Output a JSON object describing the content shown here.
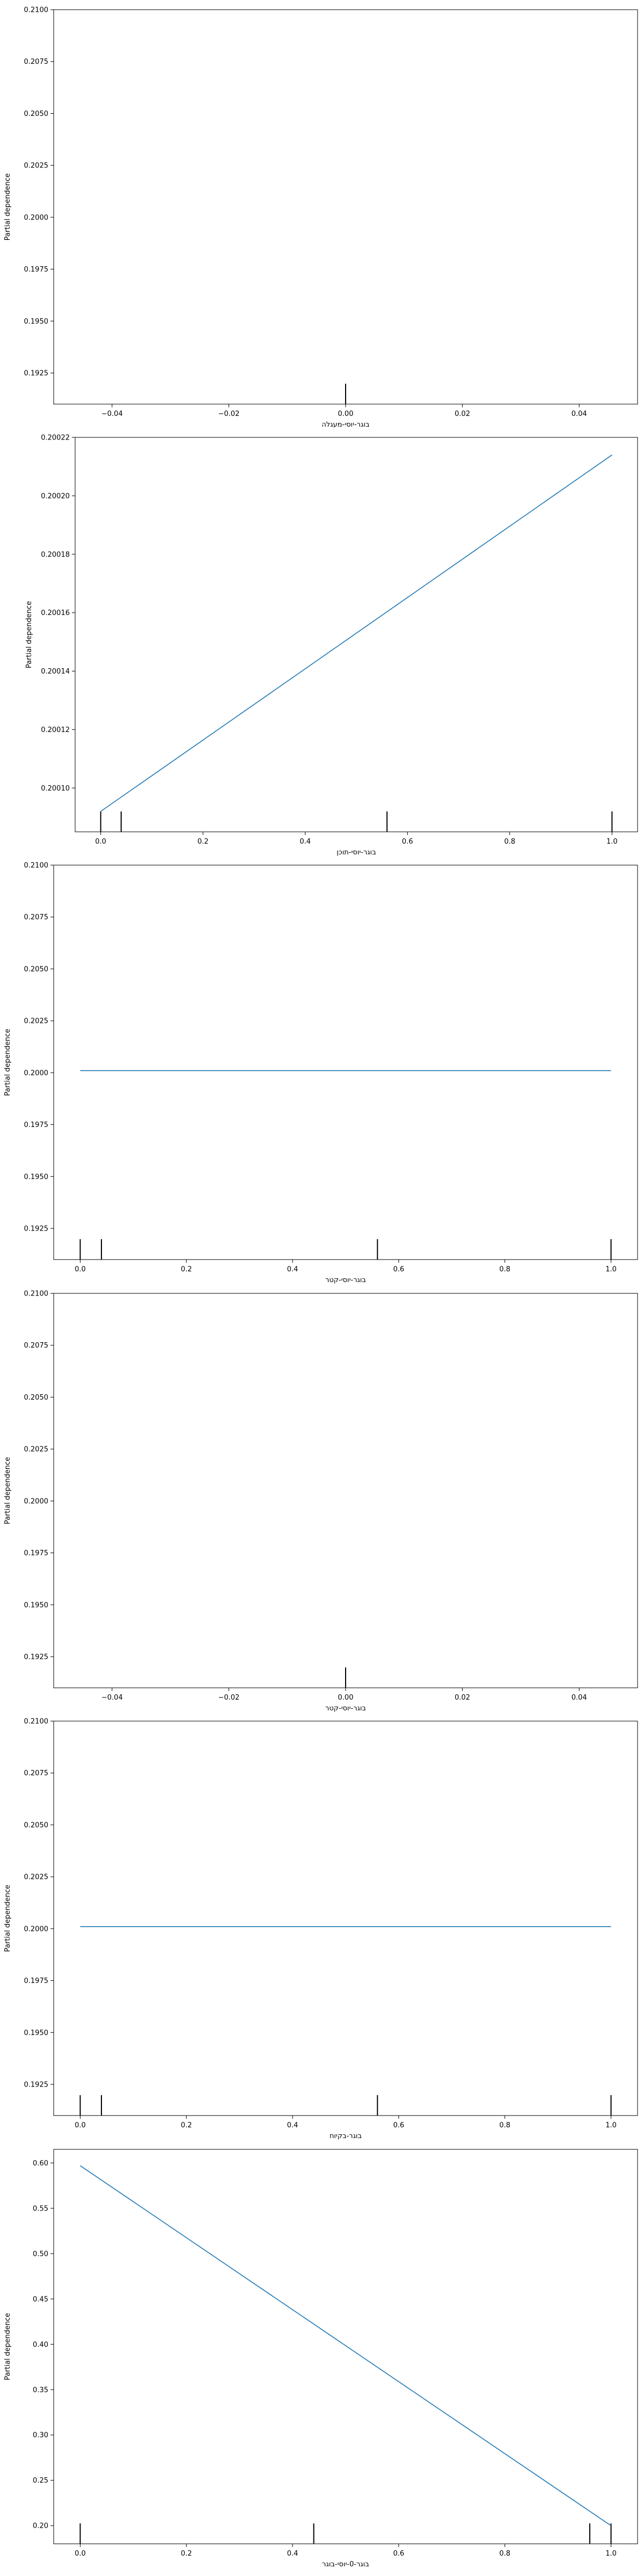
{
  "chart_data": [
    {
      "type": "line",
      "ylabel": "Partial dependence",
      "xlabel": "בוגר-יוסי-מעגלה",
      "xlim": [
        -0.05,
        0.05
      ],
      "ylim": [
        0.191,
        0.21
      ],
      "xticks": [
        -0.04,
        -0.02,
        0.0,
        0.02,
        0.04
      ],
      "xtick_labels": [
        "−0.04",
        "−0.02",
        "0.00",
        "0.02",
        "0.04"
      ],
      "yticks": [
        0.1925,
        0.195,
        0.1975,
        0.2,
        0.2025,
        0.205,
        0.2075,
        0.21
      ],
      "ytick_labels": [
        "0.1925",
        "0.1950",
        "0.1975",
        "0.2000",
        "0.2025",
        "0.2050",
        "0.2075",
        "0.2100"
      ],
      "x": [],
      "y": [],
      "rug": [
        0.0
      ],
      "line_color": "#1f77b4"
    },
    {
      "type": "line",
      "ylabel": "Partial dependence",
      "xlabel": "בוגר-יוסי-תוכן",
      "xlim": [
        -0.05,
        1.05
      ],
      "ylim": [
        0.200085,
        0.20022
      ],
      "xticks": [
        0.0,
        0.2,
        0.4,
        0.6,
        0.8,
        1.0
      ],
      "xtick_labels": [
        "0.0",
        "0.2",
        "0.4",
        "0.6",
        "0.8",
        "1.0"
      ],
      "yticks": [
        0.2001,
        0.20012,
        0.20014,
        0.20016,
        0.20018,
        0.2002,
        0.20022
      ],
      "ytick_labels": [
        "0.20010",
        "0.20012",
        "0.20014",
        "0.20016",
        "0.20018",
        "0.20020",
        "0.20022"
      ],
      "x": [
        0.0,
        1.0
      ],
      "y": [
        0.200092,
        0.200214
      ],
      "rug": [
        0.0,
        0.04,
        0.56,
        1.0
      ],
      "line_color": "#1f77b4"
    },
    {
      "type": "line",
      "ylabel": "Partial dependence",
      "xlabel": "בוגר-יוסי-קטר",
      "xlim": [
        -0.05,
        1.05
      ],
      "ylim": [
        0.191,
        0.21
      ],
      "xticks": [
        0.0,
        0.2,
        0.4,
        0.6,
        0.8,
        1.0
      ],
      "xtick_labels": [
        "0.0",
        "0.2",
        "0.4",
        "0.6",
        "0.8",
        "1.0"
      ],
      "yticks": [
        0.1925,
        0.195,
        0.1975,
        0.2,
        0.2025,
        0.205,
        0.2075,
        0.21
      ],
      "ytick_labels": [
        "0.1925",
        "0.1950",
        "0.1975",
        "0.2000",
        "0.2025",
        "0.2050",
        "0.2075",
        "0.2100"
      ],
      "x": [
        0.0,
        1.0
      ],
      "y": [
        0.2001,
        0.2001
      ],
      "rug": [
        0.0,
        0.04,
        0.56,
        1.0
      ],
      "line_color": "#1f77b4"
    },
    {
      "type": "line",
      "ylabel": "Partial dependence",
      "xlabel": "בוגר-יוסי-קטר",
      "xlim": [
        -0.05,
        0.05
      ],
      "ylim": [
        0.191,
        0.21
      ],
      "xticks": [
        -0.04,
        -0.02,
        0.0,
        0.02,
        0.04
      ],
      "xtick_labels": [
        "−0.04",
        "−0.02",
        "0.00",
        "0.02",
        "0.04"
      ],
      "yticks": [
        0.1925,
        0.195,
        0.1975,
        0.2,
        0.2025,
        0.205,
        0.2075,
        0.21
      ],
      "ytick_labels": [
        "0.1925",
        "0.1950",
        "0.1975",
        "0.2000",
        "0.2025",
        "0.2050",
        "0.2075",
        "0.2100"
      ],
      "x": [],
      "y": [],
      "rug": [
        0.0
      ],
      "line_color": "#1f77b4"
    },
    {
      "type": "line",
      "ylabel": "Partial dependence",
      "xlabel": "בוגר-בקיוח",
      "xlim": [
        -0.05,
        1.05
      ],
      "ylim": [
        0.191,
        0.21
      ],
      "xticks": [
        0.0,
        0.2,
        0.4,
        0.6,
        0.8,
        1.0
      ],
      "xtick_labels": [
        "0.0",
        "0.2",
        "0.4",
        "0.6",
        "0.8",
        "1.0"
      ],
      "yticks": [
        0.1925,
        0.195,
        0.1975,
        0.2,
        0.2025,
        0.205,
        0.2075,
        0.21
      ],
      "ytick_labels": [
        "0.1925",
        "0.1950",
        "0.1975",
        "0.2000",
        "0.2025",
        "0.2050",
        "0.2075",
        "0.2100"
      ],
      "x": [
        0.0,
        1.0
      ],
      "y": [
        0.2001,
        0.2001
      ],
      "rug": [
        0.0,
        0.04,
        0.56,
        1.0
      ],
      "line_color": "#1f77b4"
    },
    {
      "type": "line",
      "ylabel": "Partial dependence",
      "xlabel": "בוגר-0-יוסי-בוגר",
      "xlim": [
        -0.05,
        1.05
      ],
      "ylim": [
        0.18,
        0.615
      ],
      "xticks": [
        0.0,
        0.2,
        0.4,
        0.6,
        0.8,
        1.0
      ],
      "xtick_labels": [
        "0.0",
        "0.2",
        "0.4",
        "0.6",
        "0.8",
        "1.0"
      ],
      "yticks": [
        0.2,
        0.25,
        0.3,
        0.35,
        0.4,
        0.45,
        0.5,
        0.55,
        0.6
      ],
      "ytick_labels": [
        "0.20",
        "0.25",
        "0.30",
        "0.35",
        "0.40",
        "0.45",
        "0.50",
        "0.55",
        "0.60"
      ],
      "x": [
        0.0,
        1.0
      ],
      "y": [
        0.597,
        0.2
      ],
      "rug": [
        0.0,
        0.44,
        0.96,
        1.0
      ],
      "line_color": "#1f77b4"
    }
  ]
}
